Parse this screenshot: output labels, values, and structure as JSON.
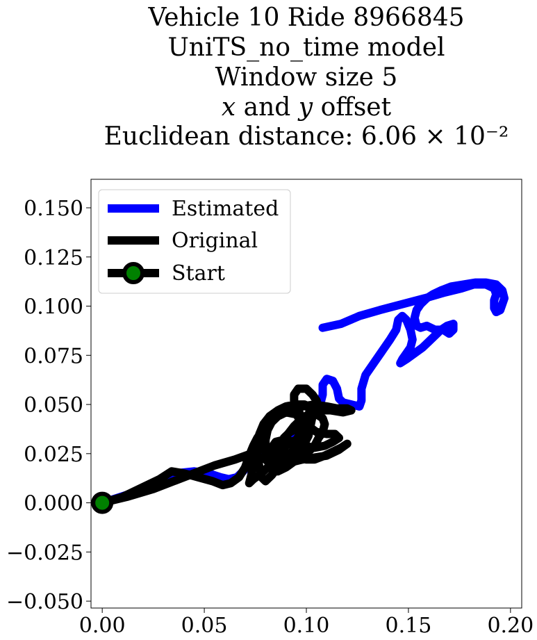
{
  "chart_data": {
    "type": "line",
    "title_lines": [
      "Vehicle 10 Ride 8966845",
      "UniTS_no_time model",
      "Window size 5",
      "𝑥 and 𝑦 offset",
      "Euclidean distance: 6.06 × 10⁻²"
    ],
    "xlabel": "",
    "ylabel": "",
    "xlim": [
      -0.0055,
      0.2055
    ],
    "ylim": [
      -0.0535,
      0.1645
    ],
    "x_ticks": [
      0.0,
      0.05,
      0.1,
      0.15,
      0.2
    ],
    "x_tick_labels": [
      "0.00",
      "0.05",
      "0.10",
      "0.15",
      "0.20"
    ],
    "y_ticks": [
      -0.05,
      -0.025,
      0.0,
      0.025,
      0.05,
      0.075,
      0.1,
      0.125,
      0.15
    ],
    "y_tick_labels": [
      "−0.050",
      "−0.025",
      "0.000",
      "0.025",
      "0.050",
      "0.075",
      "0.100",
      "0.125",
      "0.150"
    ],
    "grid": false,
    "legend_position": "top-left",
    "legend": [
      {
        "label": "Estimated",
        "color": "#0000ff",
        "marker": false
      },
      {
        "label": "Original",
        "color": "#000000",
        "marker": false
      },
      {
        "label": "Start",
        "color": "#000000",
        "marker": true,
        "marker_face": "#008000"
      }
    ],
    "series": [
      {
        "name": "Estimated",
        "color": "#0000ff",
        "points": [
          [
            0.0,
            0.0
          ],
          [
            0.012,
            0.004
          ],
          [
            0.022,
            0.008
          ],
          [
            0.03,
            0.012
          ],
          [
            0.036,
            0.015
          ],
          [
            0.045,
            0.016
          ],
          [
            0.052,
            0.015
          ],
          [
            0.058,
            0.013
          ],
          [
            0.062,
            0.012
          ],
          [
            0.066,
            0.013
          ],
          [
            0.069,
            0.016
          ],
          [
            0.072,
            0.02
          ],
          [
            0.076,
            0.024
          ],
          [
            0.081,
            0.027
          ],
          [
            0.086,
            0.03
          ],
          [
            0.09,
            0.033
          ],
          [
            0.094,
            0.036
          ],
          [
            0.098,
            0.04
          ],
          [
            0.101,
            0.044
          ],
          [
            0.104,
            0.048
          ],
          [
            0.107,
            0.051
          ],
          [
            0.108,
            0.055
          ],
          [
            0.108,
            0.06
          ],
          [
            0.11,
            0.063
          ],
          [
            0.113,
            0.062
          ],
          [
            0.115,
            0.058
          ],
          [
            0.116,
            0.053
          ],
          [
            0.118,
            0.051
          ],
          [
            0.122,
            0.05
          ],
          [
            0.126,
            0.049
          ],
          [
            0.127,
            0.052
          ],
          [
            0.127,
            0.058
          ],
          [
            0.129,
            0.065
          ],
          [
            0.133,
            0.071
          ],
          [
            0.137,
            0.077
          ],
          [
            0.141,
            0.083
          ],
          [
            0.144,
            0.088
          ],
          [
            0.145,
            0.093
          ],
          [
            0.147,
            0.095
          ],
          [
            0.149,
            0.093
          ],
          [
            0.151,
            0.088
          ],
          [
            0.152,
            0.083
          ],
          [
            0.151,
            0.079
          ],
          [
            0.149,
            0.076
          ],
          [
            0.147,
            0.073
          ],
          [
            0.146,
            0.071
          ],
          [
            0.149,
            0.073
          ],
          [
            0.153,
            0.076
          ],
          [
            0.157,
            0.079
          ],
          [
            0.16,
            0.082
          ],
          [
            0.163,
            0.085
          ],
          [
            0.166,
            0.088
          ],
          [
            0.169,
            0.09
          ],
          [
            0.172,
            0.091
          ],
          [
            0.172,
            0.088
          ],
          [
            0.17,
            0.086
          ],
          [
            0.167,
            0.088
          ],
          [
            0.163,
            0.088
          ],
          [
            0.159,
            0.09
          ],
          [
            0.156,
            0.089
          ],
          [
            0.154,
            0.09
          ],
          [
            0.153,
            0.094
          ],
          [
            0.154,
            0.098
          ],
          [
            0.156,
            0.101
          ],
          [
            0.159,
            0.104
          ],
          [
            0.162,
            0.106
          ],
          [
            0.166,
            0.108
          ],
          [
            0.171,
            0.11
          ],
          [
            0.177,
            0.111
          ],
          [
            0.183,
            0.112
          ],
          [
            0.188,
            0.112
          ],
          [
            0.193,
            0.111
          ],
          [
            0.196,
            0.108
          ],
          [
            0.197,
            0.104
          ],
          [
            0.196,
            0.101
          ],
          [
            0.195,
            0.098
          ],
          [
            0.193,
            0.097
          ],
          [
            0.192,
            0.099
          ],
          [
            0.192,
            0.103
          ],
          [
            0.193,
            0.106
          ],
          [
            0.192,
            0.109
          ],
          [
            0.188,
            0.111
          ],
          [
            0.182,
            0.111
          ],
          [
            0.176,
            0.109
          ],
          [
            0.168,
            0.107
          ],
          [
            0.158,
            0.104
          ],
          [
            0.147,
            0.101
          ],
          [
            0.136,
            0.098
          ],
          [
            0.126,
            0.095
          ],
          [
            0.117,
            0.091
          ],
          [
            0.108,
            0.089
          ]
        ]
      },
      {
        "name": "Original",
        "color": "#000000",
        "points": [
          [
            0.0,
            0.0
          ],
          [
            0.01,
            0.003
          ],
          [
            0.02,
            0.008
          ],
          [
            0.028,
            0.012
          ],
          [
            0.034,
            0.016
          ],
          [
            0.04,
            0.015
          ],
          [
            0.047,
            0.013
          ],
          [
            0.054,
            0.011
          ],
          [
            0.059,
            0.009
          ],
          [
            0.063,
            0.01
          ],
          [
            0.067,
            0.013
          ],
          [
            0.07,
            0.018
          ],
          [
            0.072,
            0.024
          ],
          [
            0.074,
            0.029
          ],
          [
            0.076,
            0.033
          ],
          [
            0.078,
            0.036
          ],
          [
            0.08,
            0.039
          ],
          [
            0.083,
            0.043
          ],
          [
            0.087,
            0.046
          ],
          [
            0.092,
            0.048
          ],
          [
            0.098,
            0.049
          ],
          [
            0.104,
            0.05
          ],
          [
            0.11,
            0.049
          ],
          [
            0.115,
            0.048
          ],
          [
            0.12,
            0.048
          ],
          [
            0.122,
            0.047
          ],
          [
            0.118,
            0.046
          ],
          [
            0.112,
            0.047
          ],
          [
            0.106,
            0.047
          ],
          [
            0.103,
            0.044
          ],
          [
            0.102,
            0.039
          ],
          [
            0.101,
            0.034
          ],
          [
            0.099,
            0.03
          ],
          [
            0.097,
            0.026
          ],
          [
            0.094,
            0.023
          ],
          [
            0.091,
            0.02
          ],
          [
            0.088,
            0.018
          ],
          [
            0.085,
            0.017
          ],
          [
            0.083,
            0.019
          ],
          [
            0.082,
            0.023
          ],
          [
            0.083,
            0.028
          ],
          [
            0.085,
            0.031
          ],
          [
            0.089,
            0.032
          ],
          [
            0.094,
            0.031
          ],
          [
            0.099,
            0.029
          ],
          [
            0.104,
            0.028
          ],
          [
            0.109,
            0.029
          ],
          [
            0.113,
            0.031
          ],
          [
            0.116,
            0.033
          ],
          [
            0.114,
            0.035
          ],
          [
            0.11,
            0.035
          ],
          [
            0.105,
            0.036
          ],
          [
            0.101,
            0.039
          ],
          [
            0.098,
            0.043
          ],
          [
            0.096,
            0.047
          ],
          [
            0.094,
            0.051
          ],
          [
            0.094,
            0.055
          ],
          [
            0.096,
            0.058
          ],
          [
            0.1,
            0.058
          ],
          [
            0.103,
            0.055
          ],
          [
            0.105,
            0.052
          ],
          [
            0.106,
            0.049
          ],
          [
            0.104,
            0.045
          ],
          [
            0.1,
            0.041
          ],
          [
            0.096,
            0.038
          ],
          [
            0.092,
            0.036
          ],
          [
            0.089,
            0.033
          ],
          [
            0.088,
            0.029
          ],
          [
            0.088,
            0.025
          ],
          [
            0.089,
            0.022
          ],
          [
            0.09,
            0.018
          ],
          [
            0.088,
            0.017
          ],
          [
            0.085,
            0.02
          ],
          [
            0.082,
            0.024
          ],
          [
            0.08,
            0.028
          ],
          [
            0.078,
            0.031
          ],
          [
            0.075,
            0.03
          ],
          [
            0.074,
            0.025
          ],
          [
            0.074,
            0.02
          ],
          [
            0.073,
            0.014
          ],
          [
            0.072,
            0.01
          ],
          [
            0.074,
            0.012
          ],
          [
            0.078,
            0.015
          ],
          [
            0.081,
            0.018
          ],
          [
            0.084,
            0.021
          ],
          [
            0.087,
            0.025
          ],
          [
            0.09,
            0.029
          ],
          [
            0.093,
            0.031
          ],
          [
            0.095,
            0.032
          ],
          [
            0.097,
            0.035
          ],
          [
            0.099,
            0.038
          ],
          [
            0.101,
            0.041
          ],
          [
            0.102,
            0.045
          ],
          [
            0.101,
            0.049
          ],
          [
            0.099,
            0.05
          ],
          [
            0.095,
            0.05
          ],
          [
            0.09,
            0.049
          ],
          [
            0.086,
            0.047
          ],
          [
            0.082,
            0.044
          ],
          [
            0.079,
            0.04
          ],
          [
            0.077,
            0.035
          ],
          [
            0.076,
            0.03
          ],
          [
            0.076,
            0.024
          ],
          [
            0.077,
            0.018
          ],
          [
            0.078,
            0.013
          ],
          [
            0.08,
            0.011
          ],
          [
            0.083,
            0.014
          ],
          [
            0.086,
            0.018
          ],
          [
            0.089,
            0.022
          ],
          [
            0.092,
            0.025
          ],
          [
            0.095,
            0.028
          ],
          [
            0.097,
            0.032
          ],
          [
            0.098,
            0.037
          ],
          [
            0.097,
            0.042
          ],
          [
            0.095,
            0.045
          ],
          [
            0.09,
            0.046
          ],
          [
            0.086,
            0.044
          ],
          [
            0.083,
            0.041
          ],
          [
            0.081,
            0.037
          ],
          [
            0.08,
            0.032
          ],
          [
            0.08,
            0.026
          ],
          [
            0.081,
            0.021
          ],
          [
            0.083,
            0.017
          ],
          [
            0.086,
            0.016
          ],
          [
            0.09,
            0.018
          ],
          [
            0.094,
            0.021
          ],
          [
            0.098,
            0.023
          ],
          [
            0.101,
            0.026
          ],
          [
            0.104,
            0.029
          ],
          [
            0.106,
            0.033
          ],
          [
            0.108,
            0.036
          ],
          [
            0.109,
            0.04
          ],
          [
            0.108,
            0.043
          ],
          [
            0.105,
            0.045
          ],
          [
            0.101,
            0.045
          ],
          [
            0.097,
            0.042
          ],
          [
            0.094,
            0.039
          ],
          [
            0.091,
            0.035
          ],
          [
            0.088,
            0.03
          ],
          [
            0.086,
            0.024
          ],
          [
            0.085,
            0.02
          ],
          [
            0.088,
            0.021
          ],
          [
            0.092,
            0.023
          ],
          [
            0.096,
            0.023
          ],
          [
            0.1,
            0.022
          ],
          [
            0.104,
            0.022
          ],
          [
            0.109,
            0.024
          ],
          [
            0.113,
            0.026
          ],
          [
            0.117,
            0.028
          ],
          [
            0.12,
            0.03
          ],
          [
            0.116,
            0.027
          ],
          [
            0.11,
            0.024
          ],
          [
            0.104,
            0.023
          ],
          [
            0.098,
            0.022
          ],
          [
            0.094,
            0.021
          ],
          [
            0.09,
            0.02
          ],
          [
            0.087,
            0.019
          ],
          [
            0.08,
            0.022
          ],
          [
            0.073,
            0.025
          ],
          [
            0.065,
            0.022
          ],
          [
            0.055,
            0.019
          ],
          [
            0.045,
            0.015
          ],
          [
            0.035,
            0.011
          ],
          [
            0.025,
            0.007
          ],
          [
            0.012,
            0.003
          ],
          [
            0.0,
            0.0
          ]
        ]
      }
    ],
    "start_point": [
      0.0,
      0.0
    ]
  }
}
